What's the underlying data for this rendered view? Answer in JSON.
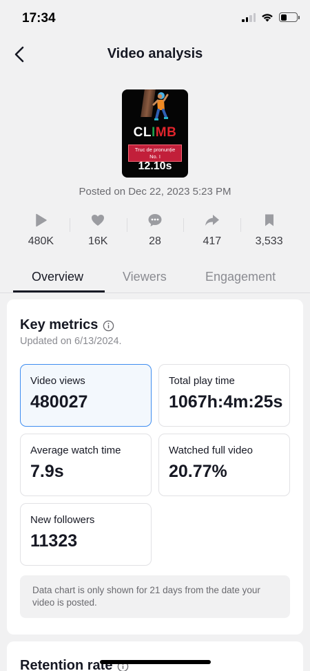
{
  "status_bar": {
    "time": "17:34",
    "signal_bars": 4,
    "signal_bars_active": 2,
    "battery_level": 0.4,
    "icons": [
      "cellular-signal-icon",
      "wifi-icon",
      "battery-icon"
    ]
  },
  "header": {
    "title": "Video analysis",
    "back_icon": "chevron-left-icon"
  },
  "video": {
    "thumbnail_text": {
      "climb_letters": [
        "CL",
        "I",
        "M",
        "B"
      ],
      "banner_line1": "Truc de pronunție",
      "banner_line2": "No. I",
      "duration": "12.10s"
    },
    "posted": "Posted on Dec 22, 2023 5:23 PM"
  },
  "stats": [
    {
      "icon": "play-icon",
      "value": "480K"
    },
    {
      "icon": "heart-icon",
      "value": "16K"
    },
    {
      "icon": "comment-icon",
      "value": "28"
    },
    {
      "icon": "share-icon",
      "value": "417"
    },
    {
      "icon": "bookmark-icon",
      "value": "3,533"
    }
  ],
  "tabs": [
    {
      "label": "Overview",
      "active": true
    },
    {
      "label": "Viewers",
      "active": false
    },
    {
      "label": "Engagement",
      "active": false
    }
  ],
  "key_metrics": {
    "title": "Key metrics",
    "updated": "Updated on 6/13/2024.",
    "metrics": [
      {
        "label": "Video views",
        "value": "480027",
        "selected": true
      },
      {
        "label": "Total play time",
        "value": "1067h:4m:25s",
        "selected": false
      },
      {
        "label": "Average watch time",
        "value": "7.9s",
        "selected": false
      },
      {
        "label": "Watched full video",
        "value": "20.77%",
        "selected": false
      },
      {
        "label": "New followers",
        "value": "11323",
        "selected": false
      }
    ],
    "note": "Data chart is only shown for 21 days from the date your video is posted."
  },
  "retention": {
    "title": "Retention rate"
  },
  "colors": {
    "background": "#f1f1f2",
    "card": "#ffffff",
    "selected_border": "#3d8cf0",
    "selected_fill": "#f3f8fd",
    "text_primary": "#161823",
    "text_secondary": "#8a8b91"
  }
}
